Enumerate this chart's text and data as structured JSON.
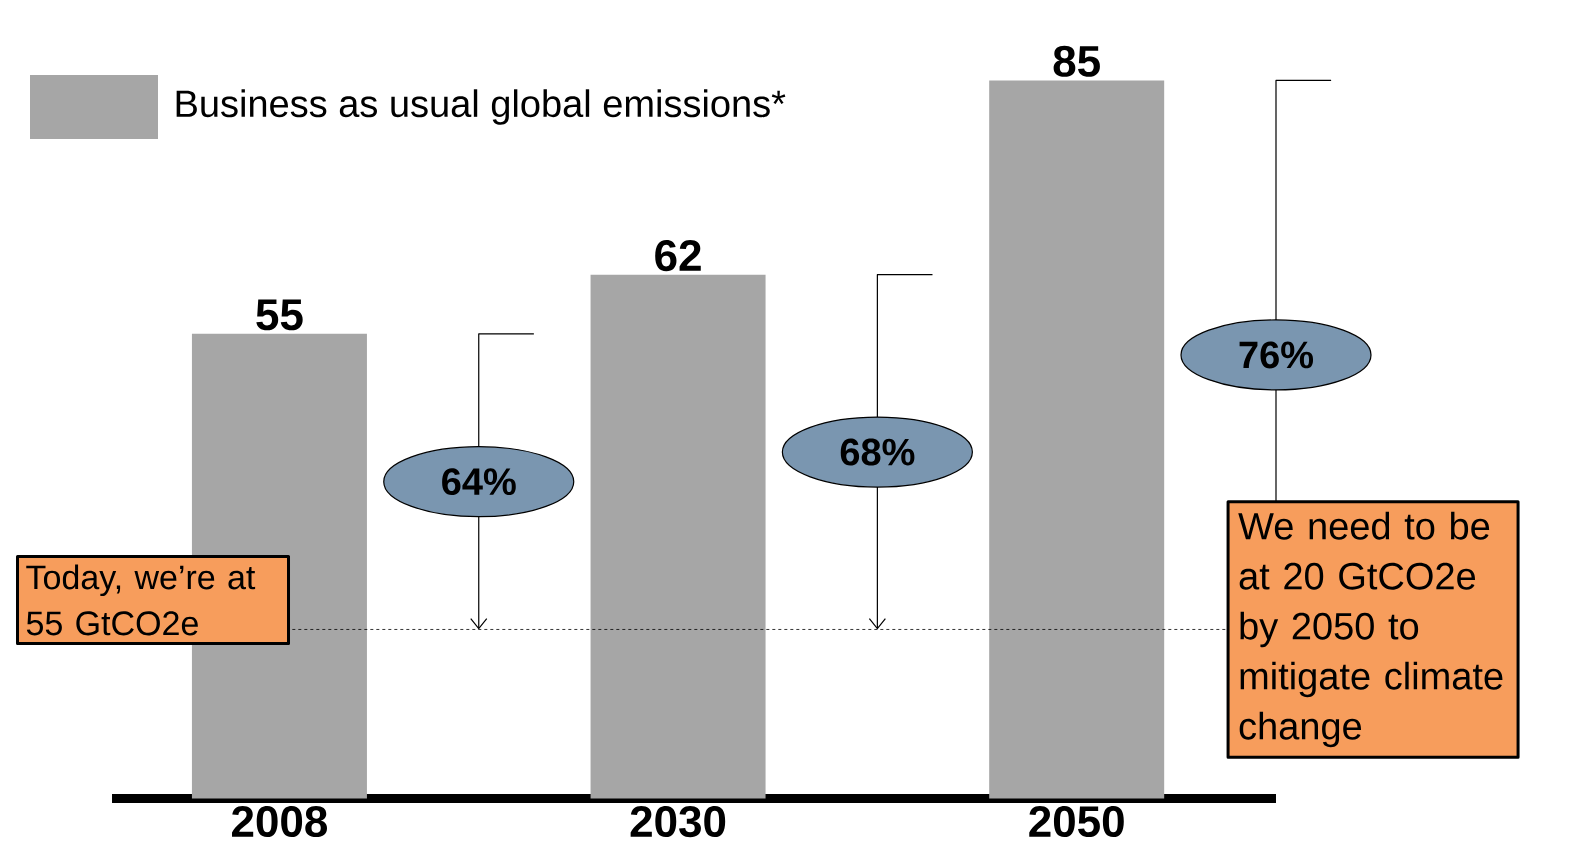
{
  "chart_data": {
    "type": "bar",
    "categories": [
      "2008",
      "2030",
      "2050"
    ],
    "series": [
      {
        "name": "Business as usual global emissions*",
        "color": "#a6a6a6",
        "values": [
          55,
          62,
          85
        ]
      }
    ],
    "data_labels": true,
    "legend": "top left",
    "ref_lines": [
      {
        "axis": "y",
        "value": 20,
        "label": "We need to be at 20 GtCO2e by 2050 to mitigate climate change",
        "color": "#000000",
        "line_style": "dashed"
      }
    ],
    "annotations": [
      "Today, we’re at 55 GtCO2e",
      "64%",
      "68%",
      "76%"
    ]
  }
}
